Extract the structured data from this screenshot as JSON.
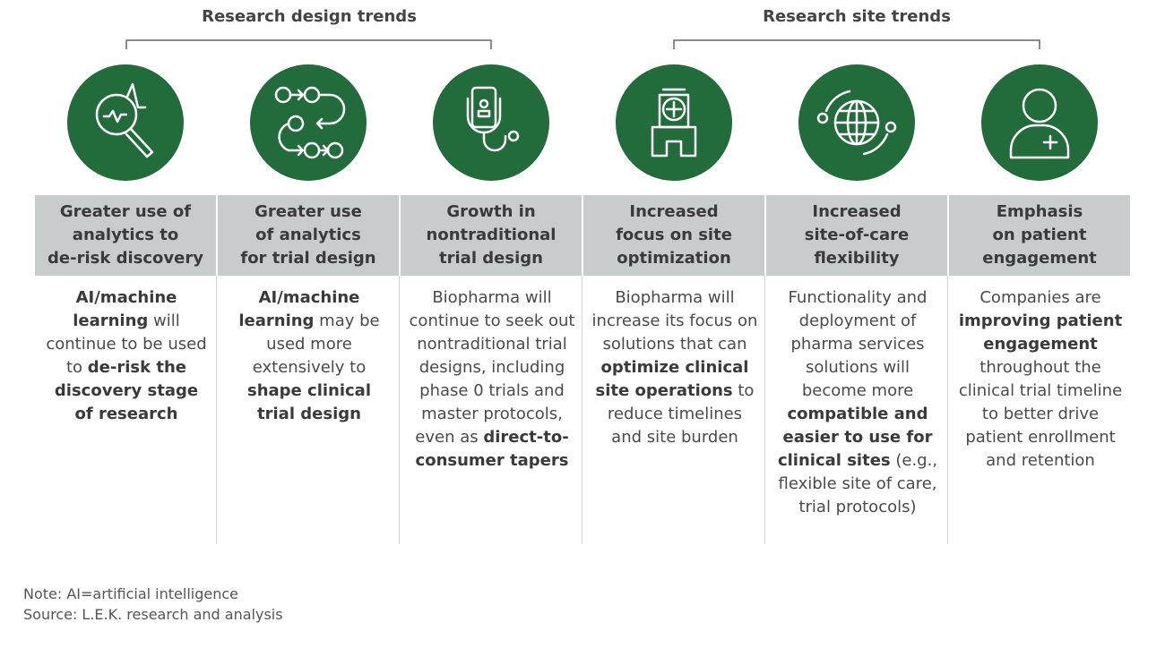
{
  "groups": [
    {
      "label": "Research design trends"
    },
    {
      "label": "Research site trends"
    }
  ],
  "columns": [
    {
      "heading": [
        "Greater use of",
        "analytics to",
        "de-risk discovery"
      ],
      "body": [
        {
          "bold": "AI/machine learning"
        },
        {
          "text": " will continue to be used to "
        },
        {
          "bold": "de-risk the discovery stage of research"
        }
      ]
    },
    {
      "heading": [
        "Greater use",
        "of analytics",
        "for trial design"
      ],
      "body": [
        {
          "bold": "AI/machine learning"
        },
        {
          "text": " may be used more extensively to "
        },
        {
          "bold": "shape clinical trial design"
        }
      ]
    },
    {
      "heading": [
        "Growth in",
        "nontraditional",
        "trial design"
      ],
      "body": [
        {
          "text": "Biopharma will continue to seek out nontraditional trial designs, including phase 0 trials and master protocols, even as "
        },
        {
          "bold": "direct-to-consumer tapers"
        }
      ]
    },
    {
      "heading": [
        "Increased",
        "focus on site",
        "optimization"
      ],
      "body": [
        {
          "text": "Biopharma will increase its focus on solutions that can "
        },
        {
          "bold": "optimize clinical site operations"
        },
        {
          "text": " to reduce timelines and site burden"
        }
      ]
    },
    {
      "heading": [
        "Increased",
        "site-of-care",
        "flexibility"
      ],
      "body": [
        {
          "text": "Functionality and deployment of pharma services solutions will become more "
        },
        {
          "bold": "compatible and easier to use for clinical sites"
        },
        {
          "text": " (e.g., flexible site of care, trial protocols)"
        }
      ]
    },
    {
      "heading": [
        "Emphasis",
        "on patient",
        "engagement"
      ],
      "body": [
        {
          "text": "Companies are "
        },
        {
          "bold": "improving patient engagement"
        },
        {
          "text": " throughout the clinical trial timeline to better drive patient enrollment and retention"
        }
      ]
    }
  ],
  "notes": [
    "Note: AI=artificial intelligence",
    "Source: L.E.K. research and analysis"
  ]
}
